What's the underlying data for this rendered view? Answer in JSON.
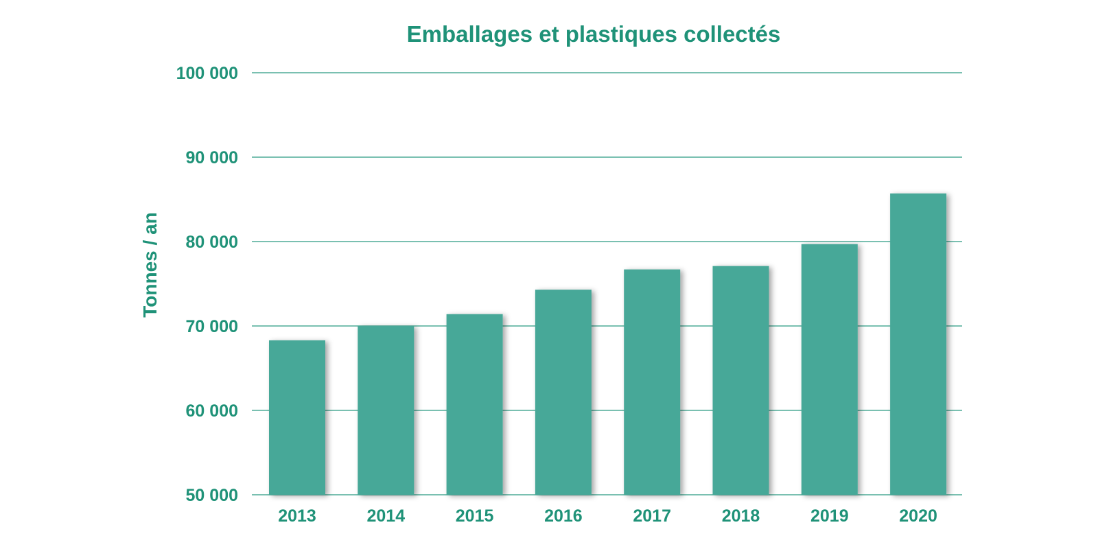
{
  "chart_data": {
    "type": "bar",
    "title": "Emballages et plastiques collectés",
    "xlabel": "",
    "ylabel": "Tonnes / an",
    "categories": [
      "2013",
      "2014",
      "2015",
      "2016",
      "2017",
      "2018",
      "2019",
      "2020"
    ],
    "values": [
      68300,
      70000,
      71400,
      74300,
      76700,
      77100,
      79700,
      85700
    ],
    "ylim": [
      50000,
      100000
    ],
    "yticks": [
      50000,
      60000,
      70000,
      80000,
      90000,
      100000
    ],
    "ytick_labels": [
      "50 000",
      "60 000",
      "70 000",
      "80 000",
      "90 000",
      "100 000"
    ],
    "grid": true,
    "legend": "none"
  },
  "colors": {
    "accent": "#1f9278",
    "bar": "#47a898",
    "gridline": "#2a9a82",
    "bar_shadow": "rgba(0,0,0,0.35)"
  }
}
